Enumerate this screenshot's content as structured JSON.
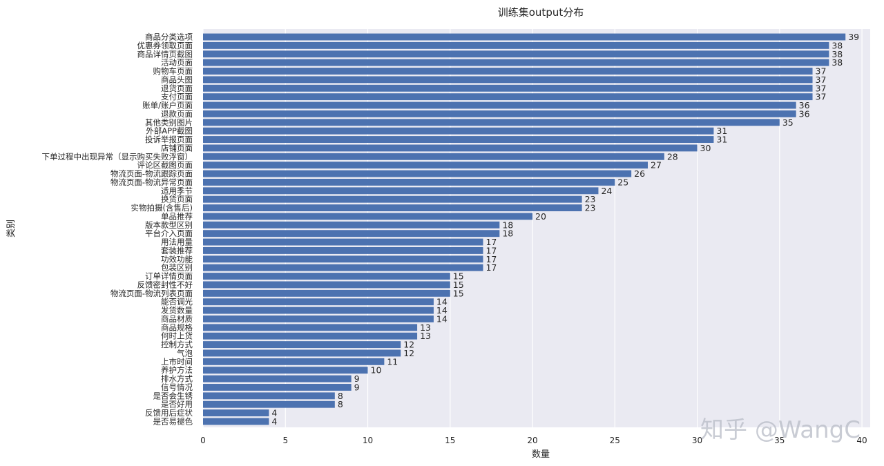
{
  "chart_data": {
    "type": "bar",
    "orientation": "horizontal",
    "title": "训练集output分布",
    "xlabel": "数量",
    "ylabel": "类别",
    "xlim": [
      0,
      40.5
    ],
    "xticks": [
      "0",
      "5",
      "10",
      "15",
      "20",
      "25",
      "30",
      "35",
      "40"
    ],
    "xtick_values": [
      0,
      5,
      10,
      15,
      20,
      25,
      30,
      35,
      40
    ],
    "grid": "vertical",
    "categories": [
      "商品分类选项",
      "优惠券领取页面",
      "商品详情页截图",
      "活动页面",
      "购物车页面",
      "商品头图",
      "退货页面",
      "支付页面",
      "账单/账户页面",
      "退款页面",
      "其他类别图片",
      "外部APP截图",
      "投诉举报页面",
      "店铺页面",
      "下单过程中出现异常（显示购买失败浮窗）",
      "评论区截图页面",
      "物流页面-物流跟踪页面",
      "物流页面-物流异常页面",
      "适用季节",
      "换货页面",
      "实物拍摄(含售后)",
      "单品推荐",
      "版本款型区别",
      "平台介入页面",
      "用法用量",
      "套装推荐",
      "功效功能",
      "包装区别",
      "订单详情页面",
      "反馈密封性不好",
      "物流页面-物流列表页面",
      "能否调光",
      "发货数量",
      "商品材质",
      "商品规格",
      "何时上货",
      "控制方式",
      "气泡",
      "上市时间",
      "养护方法",
      "排水方式",
      "信号情况",
      "是否会生锈",
      "是否好用",
      "反馈用后症状",
      "是否易褪色"
    ],
    "values": [
      39,
      38,
      38,
      38,
      37,
      37,
      37,
      37,
      36,
      36,
      35,
      31,
      31,
      30,
      28,
      27,
      26,
      25,
      24,
      23,
      23,
      20,
      18,
      18,
      17,
      17,
      17,
      17,
      15,
      15,
      15,
      14,
      14,
      14,
      13,
      13,
      12,
      12,
      11,
      10,
      9,
      9,
      8,
      8,
      4,
      4
    ],
    "colors": {
      "bar": "#4c72b0",
      "plot_bg": "#eaeaf2",
      "grid": "#ffffff"
    }
  },
  "watermark": "知乎 @WangC"
}
